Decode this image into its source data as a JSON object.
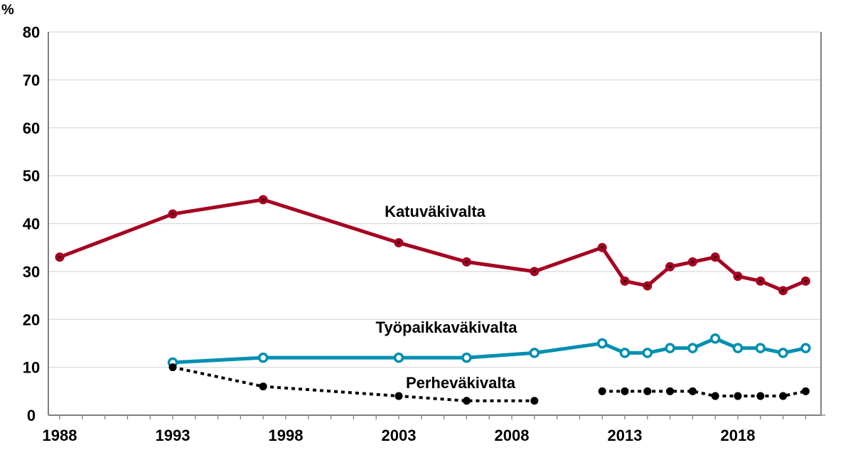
{
  "chart_data": {
    "type": "line",
    "ylabel": "%",
    "ylim": [
      0,
      80
    ],
    "yticks": [
      "0",
      "10",
      "20",
      "30",
      "40",
      "50",
      "60",
      "70",
      "80"
    ],
    "xlim": [
      1987.5,
      2021.5
    ],
    "xtick_labels": [
      "1988",
      "1993",
      "1998",
      "2003",
      "2008",
      "2013",
      "2018"
    ],
    "grid": "horizontal",
    "series": [
      {
        "name": "Katuväkivalta",
        "color": "#A50021",
        "style": "solid",
        "x": [
          1988,
          1993,
          1997,
          2003,
          2006,
          2009,
          2012,
          2013,
          2014,
          2015,
          2016,
          2017,
          2018,
          2019,
          2020,
          2021
        ],
        "y": [
          33,
          42,
          45,
          36,
          32,
          30,
          35,
          28,
          27,
          31,
          32,
          33,
          29,
          28,
          26,
          28
        ]
      },
      {
        "name": "Työpaikkaväkivalta",
        "color": "#008FB0",
        "style": "solid",
        "x": [
          1993,
          1997,
          2003,
          2006,
          2009,
          2012,
          2013,
          2014,
          2015,
          2016,
          2017,
          2018,
          2019,
          2020,
          2021
        ],
        "y": [
          11,
          12,
          12,
          12,
          13,
          15,
          13,
          13,
          14,
          14,
          16,
          14,
          14,
          13,
          14
        ]
      },
      {
        "name": "Perheväkivalta",
        "color": "#000000",
        "style": "dotted",
        "x": [
          1993,
          1997,
          2003,
          2006,
          2009,
          2012,
          2013,
          2014,
          2015,
          2016,
          2017,
          2018,
          2019,
          2020,
          2021
        ],
        "y": [
          10,
          6,
          4,
          3,
          3,
          5,
          5,
          5,
          5,
          5,
          4,
          4,
          4,
          4,
          5
        ],
        "gap_after": 2009
      }
    ]
  }
}
